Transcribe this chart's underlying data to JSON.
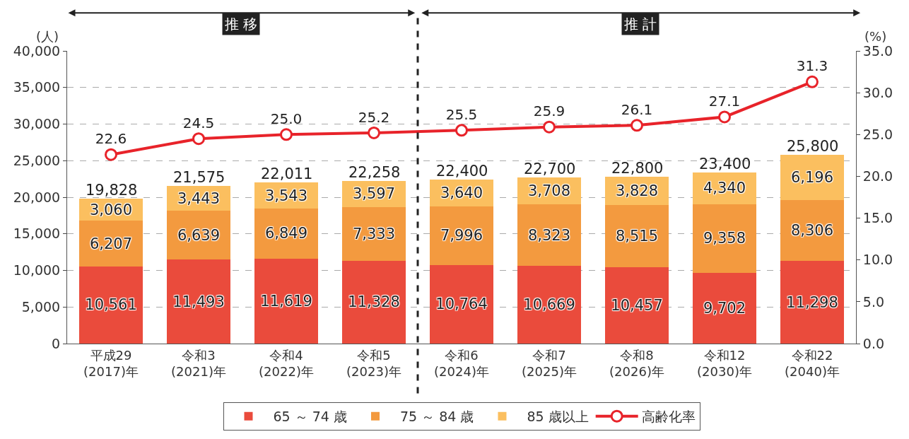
{
  "chart_data": {
    "type": "bar",
    "stacked": true,
    "categories": [
      "平成29\n(2017)年",
      "令和3\n(2021)年",
      "令和4\n(2022)年",
      "令和5\n(2023)年",
      "令和6\n(2024)年",
      "令和7\n(2025)年",
      "令和8\n(2026)年",
      "令和12\n(2030)年",
      "令和22\n(2040)年"
    ],
    "series": [
      {
        "name": "65 ～ 74 歳",
        "color": "#ea4b3c",
        "values": [
          10561,
          11493,
          11619,
          11328,
          10764,
          10669,
          10457,
          9702,
          11298
        ],
        "value_labels": [
          "10,561",
          "11,493",
          "11,619",
          "11,328",
          "10,764",
          "10,669",
          "10,457",
          "9,702",
          "11,298"
        ]
      },
      {
        "name": "75 ～ 84 歳",
        "color": "#f39a3f",
        "values": [
          6207,
          6639,
          6849,
          7333,
          7996,
          8323,
          8515,
          9358,
          8306
        ],
        "value_labels": [
          "6,207",
          "6,639",
          "6,849",
          "7,333",
          "7,996",
          "8,323",
          "8,515",
          "9,358",
          "8,306"
        ]
      },
      {
        "name": "85 歳以上",
        "color": "#fbbf5f",
        "values": [
          3060,
          3443,
          3543,
          3597,
          3640,
          3708,
          3828,
          4340,
          6196
        ],
        "value_labels": [
          "3,060",
          "3,443",
          "3,543",
          "3,597",
          "3,640",
          "3,708",
          "3,828",
          "4,340",
          "6,196"
        ]
      },
      {
        "name": "高齢化率",
        "type": "line",
        "axis": "y2",
        "color": "#e8232a",
        "marker": "circle",
        "values": [
          22.6,
          24.5,
          25.0,
          25.2,
          25.5,
          25.9,
          26.1,
          27.1,
          31.3
        ],
        "value_labels": [
          "22.6",
          "24.5",
          "25.0",
          "25.2",
          "25.5",
          "25.9",
          "26.1",
          "27.1",
          "31.3"
        ]
      }
    ],
    "totals": [
      "19,828",
      "21,575",
      "22,011",
      "22,258",
      "22,400",
      "22,700",
      "22,800",
      "23,400",
      "25,800"
    ],
    "ylabel": "(人)",
    "y2label": "(%)",
    "ylim": [
      0,
      40000
    ],
    "yticks": [
      0,
      {
        "value": 5000,
        "label": "5,000"
      },
      {
        "value": 10000,
        "label": "10,000"
      },
      {
        "value": 15000,
        "label": "15,000"
      },
      {
        "value": 20000,
        "label": "20,000"
      },
      {
        "value": 25000,
        "label": "25,000"
      },
      {
        "value": 30000,
        "label": "30,000"
      },
      {
        "value": 35000,
        "label": "35,000"
      },
      {
        "value": 40000,
        "label": "40,000"
      }
    ],
    "y2lim": [
      0,
      35
    ],
    "y2ticks": [
      {
        "value": 0,
        "label": "0.0"
      },
      {
        "value": 5,
        "label": "5.0"
      },
      {
        "value": 10,
        "label": "10.0"
      },
      {
        "value": 15,
        "label": "15.0"
      },
      {
        "value": 20,
        "label": "20.0"
      },
      {
        "value": 25,
        "label": "25.0"
      },
      {
        "value": 30,
        "label": "30.0"
      },
      {
        "value": 35,
        "label": "35.0"
      }
    ],
    "grid": "y",
    "legend": "bottom",
    "ref_lines": [
      {
        "axis": "x",
        "value": "令和6\n(2024)年",
        "line_style": "dashed",
        "color": "#222222"
      }
    ],
    "annotations": [
      "推 移",
      "推 計"
    ]
  }
}
